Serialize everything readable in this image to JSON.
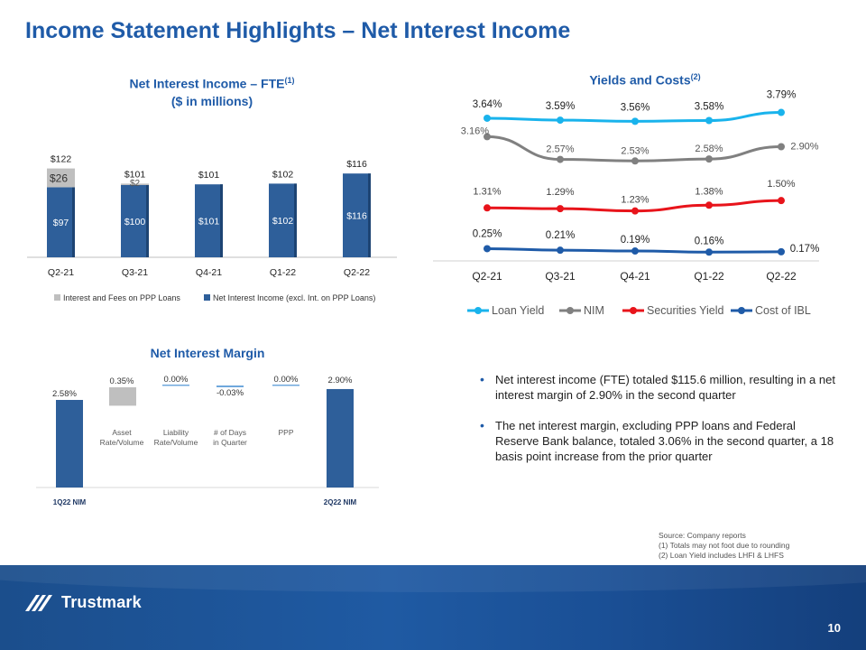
{
  "slide": {
    "title": "Income Statement Highlights – Net Interest Income",
    "page_number": "10",
    "brand": "Trustmark",
    "colors": {
      "title": "#1f5ba8",
      "footer": "#1b4e8c"
    }
  },
  "nii_panel": {
    "title_line1": "Net Interest Income – FTE",
    "title_sup": "(1)",
    "title_line2": "($ in millions)"
  },
  "yields_panel": {
    "title": "Yields and Costs",
    "title_sup": "(2)"
  },
  "nim_panel": {
    "title": "Net Interest Margin"
  },
  "chart_data": [
    {
      "type": "bar",
      "stacked": true,
      "categories": [
        "Q2-21",
        "Q3-21",
        "Q4-21",
        "Q1-22",
        "Q2-22"
      ],
      "series": [
        {
          "name": "Net Interest Income (excl. Int. on PPP Loans)",
          "values": [
            97,
            100,
            101,
            102,
            116
          ],
          "labels": [
            "$97",
            "$100",
            "$101",
            "$102",
            "$116"
          ],
          "color": "#2e5f9a"
        },
        {
          "name": "Interest and Fees on PPP Loans",
          "values": [
            26,
            2,
            0,
            0,
            0
          ],
          "labels": [
            "$26",
            "$2",
            "",
            "",
            ""
          ],
          "color": "#bfbfbf"
        }
      ],
      "totals": [
        "$122",
        "$101",
        "$101",
        "$102",
        "$116"
      ],
      "ylim": [
        0,
        130
      ],
      "legend": "bottom"
    },
    {
      "type": "line",
      "categories": [
        "Q2-21",
        "Q3-21",
        "Q4-21",
        "Q1-22",
        "Q2-22"
      ],
      "series": [
        {
          "name": "Loan Yield",
          "values": [
            3.64,
            3.59,
            3.56,
            3.58,
            3.79
          ],
          "labels": [
            "3.64%",
            "3.59%",
            "3.56%",
            "3.58%",
            "3.79%"
          ],
          "color": "#19b3ec"
        },
        {
          "name": "NIM",
          "values": [
            3.16,
            2.57,
            2.53,
            2.58,
            2.9
          ],
          "labels": [
            "3.16%",
            "2.57%",
            "2.53%",
            "2.58%",
            "2.90%"
          ],
          "color": "#808080"
        },
        {
          "name": "Securities Yield",
          "values": [
            1.31,
            1.29,
            1.23,
            1.38,
            1.5
          ],
          "labels": [
            "1.31%",
            "1.29%",
            "1.23%",
            "1.38%",
            "1.50%"
          ],
          "color": "#e8141b"
        },
        {
          "name": "Cost of IBL",
          "values": [
            0.25,
            0.21,
            0.19,
            0.16,
            0.17
          ],
          "labels": [
            "0.25%",
            "0.21%",
            "0.19%",
            "0.16%",
            "0.17%"
          ],
          "color": "#1f5ba8"
        }
      ],
      "legend": "bottom"
    },
    {
      "type": "bar",
      "waterfall": true,
      "bars": [
        {
          "label": "1Q22 NIM",
          "value": 2.58,
          "value_label": "2.58%",
          "kind": "total"
        },
        {
          "label": "Asset Rate/Volume",
          "value": 0.35,
          "value_label": "0.35%",
          "kind": "increase"
        },
        {
          "label": "Liability Rate/Volume",
          "value": 0.0,
          "value_label": "0.00%",
          "kind": "change"
        },
        {
          "label": "# of Days in Quarter",
          "value": -0.03,
          "value_label": "-0.03%",
          "kind": "change"
        },
        {
          "label": "PPP",
          "value": 0.0,
          "value_label": "0.00%",
          "kind": "change"
        },
        {
          "label": "2Q22 NIM",
          "value": 2.9,
          "value_label": "2.90%",
          "kind": "total"
        }
      ]
    }
  ],
  "bullets": [
    "Net interest income (FTE) totaled $115.6 million, resulting in a net interest margin of 2.90% in the second quarter",
    "The net interest margin, excluding PPP loans and Federal Reserve Bank balance, totaled 3.06% in the second quarter, a 18 basis point increase from the prior quarter"
  ],
  "notes": [
    "Source: Company reports",
    "(1) Totals may not foot due to rounding",
    "(2) Loan Yield  includes LHFI & LHFS"
  ]
}
